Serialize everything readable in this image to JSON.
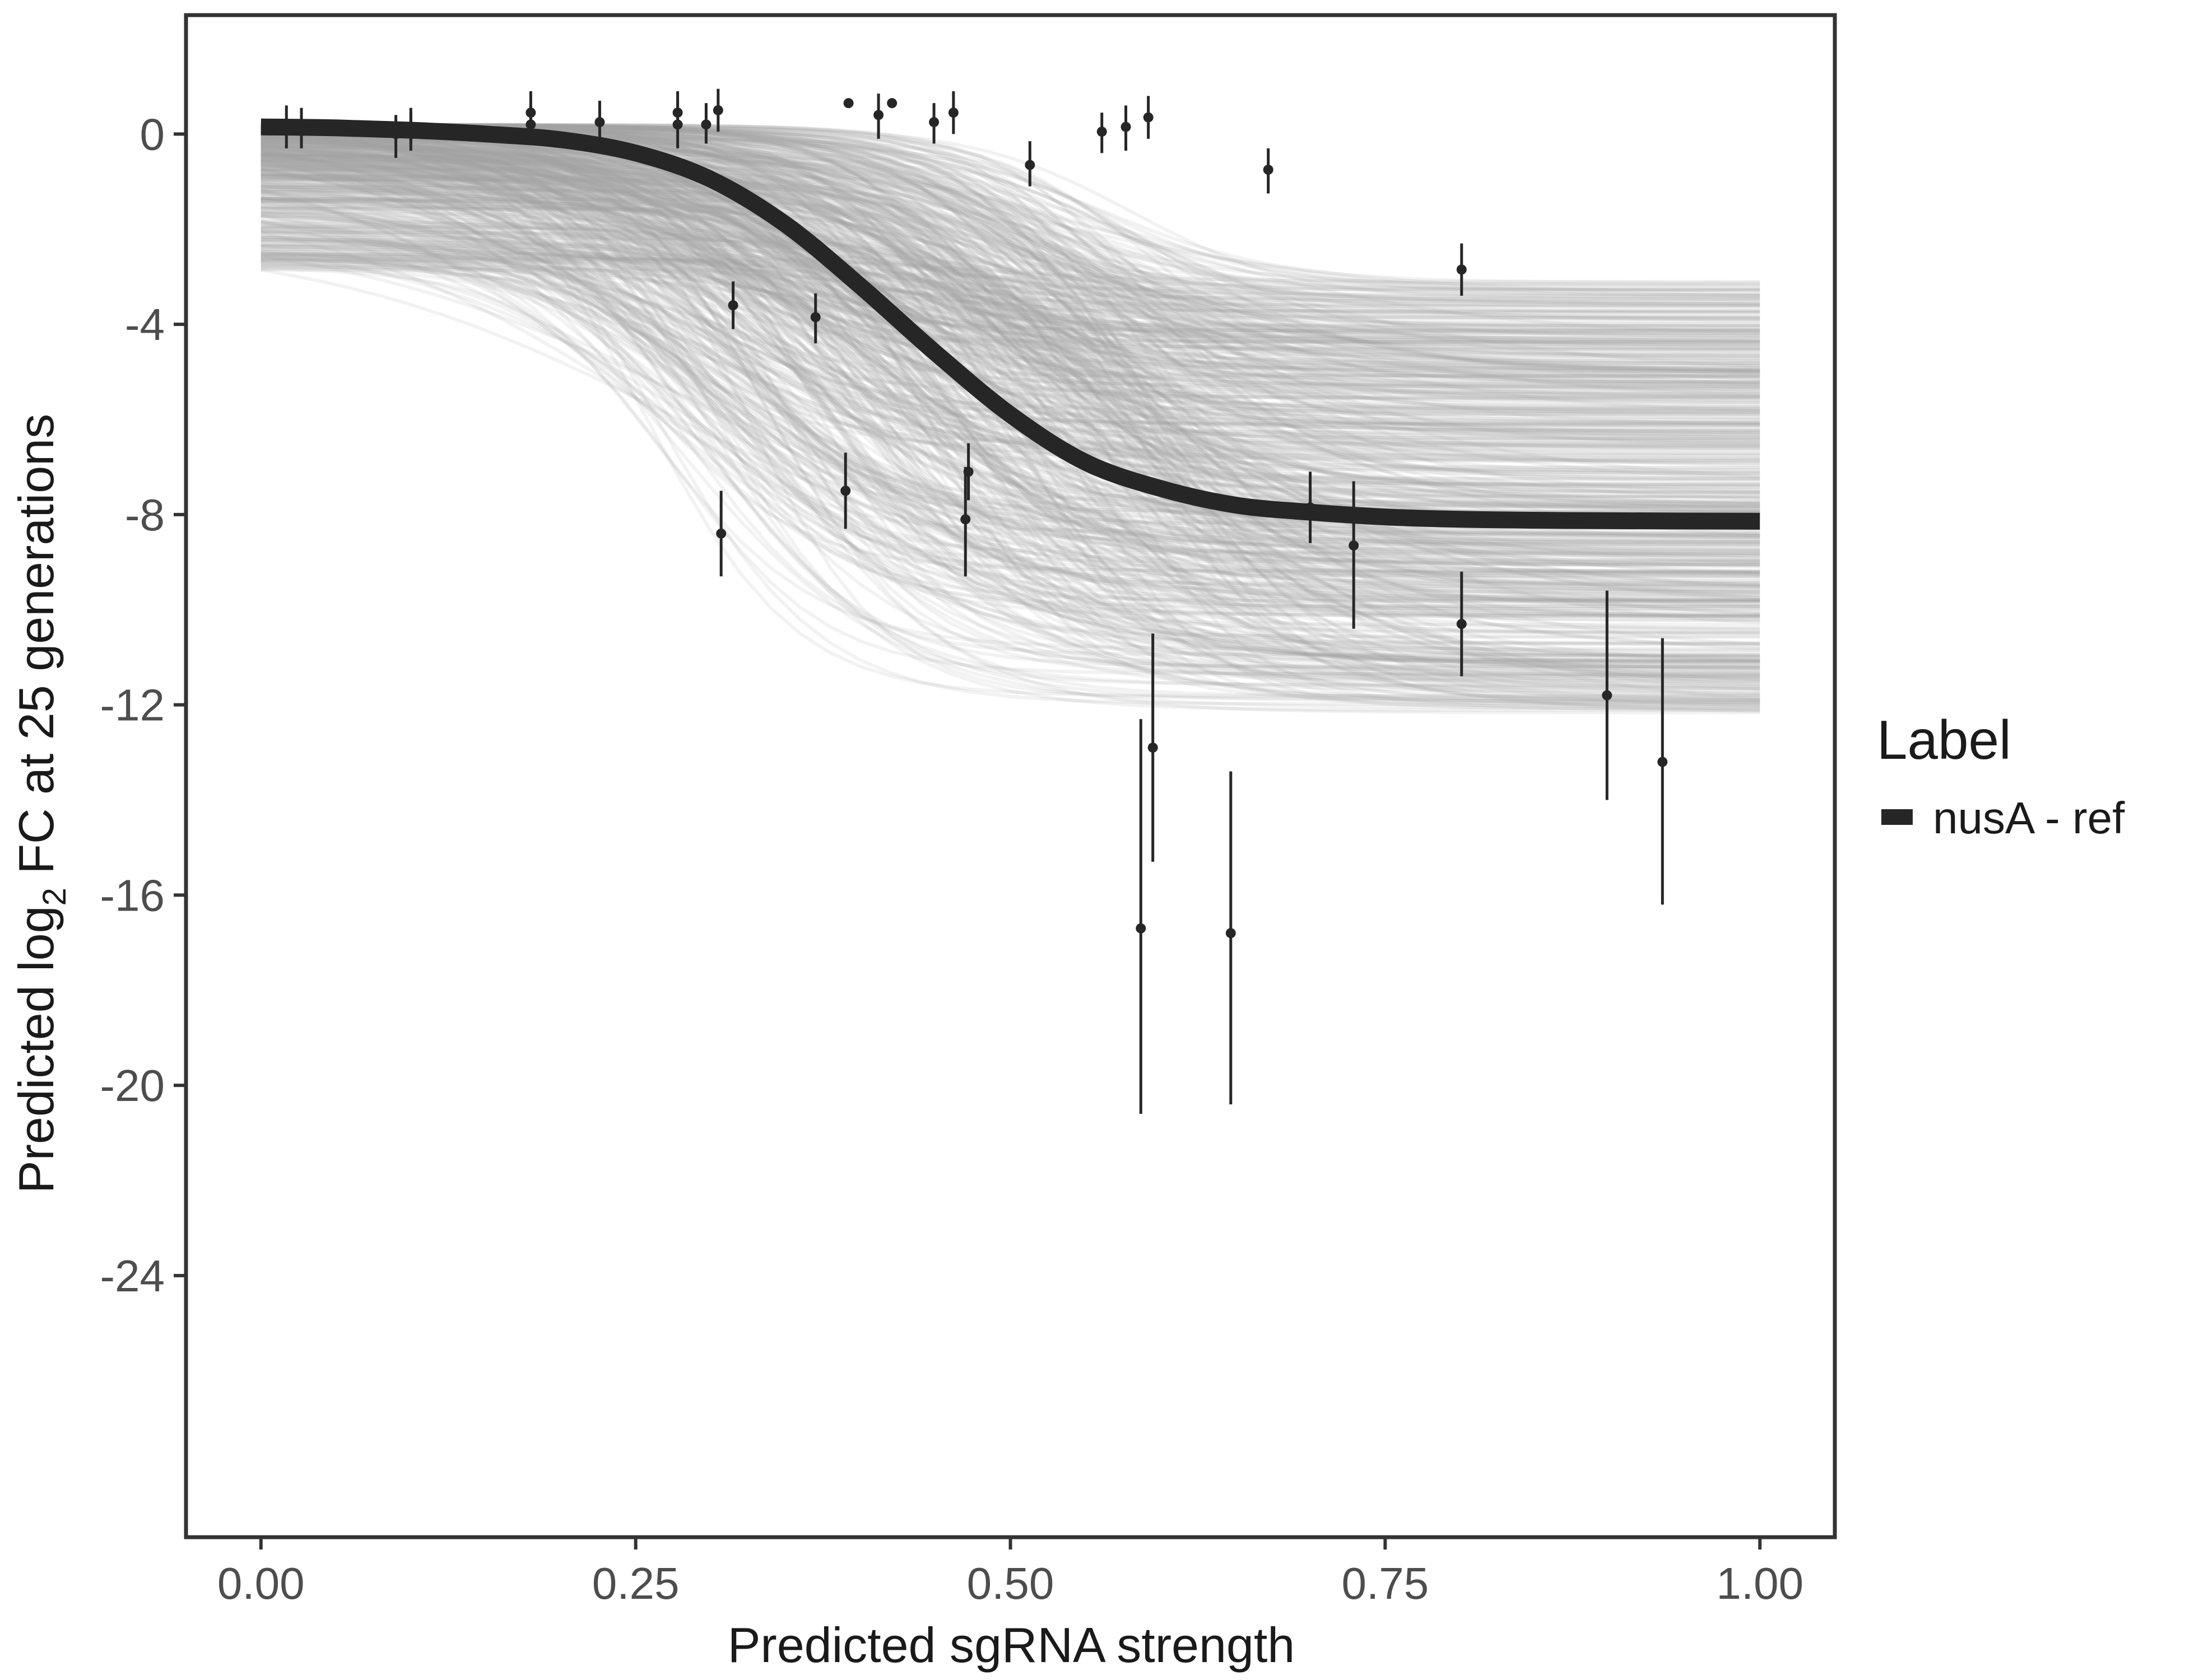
{
  "chart_data": {
    "type": "line",
    "xlabel": "Predicted sgRNA strength",
    "ylabel_prefix": "Predicted  log",
    "ylabel_subscript": "2",
    "ylabel_suffix": " FC at 25 generations",
    "xlim": [
      -0.05,
      1.05
    ],
    "ylim": [
      -29.5,
      2.5
    ],
    "x_ticks": [
      0,
      0.25,
      0.5,
      0.75,
      1
    ],
    "x_tick_labels": [
      "0.00",
      "0.25",
      "0.50",
      "0.75",
      "1.00"
    ],
    "y_ticks": [
      0,
      -4,
      -8,
      -12,
      -16,
      -20,
      -24
    ],
    "y_tick_labels": [
      "0",
      "-4",
      "-8",
      "-12",
      "-16",
      "-20",
      "-24"
    ],
    "grid": false,
    "legend": {
      "title": "Label",
      "position": "right",
      "entries": [
        {
          "label": "nusA - ref",
          "color": "#262626"
        }
      ]
    },
    "series": [
      {
        "name": "nusA - ref",
        "kind": "fitted_curve",
        "color": "#262626",
        "points": [
          [
            0.0,
            0.15
          ],
          [
            0.05,
            0.13
          ],
          [
            0.1,
            0.08
          ],
          [
            0.15,
            0.0
          ],
          [
            0.2,
            -0.12
          ],
          [
            0.25,
            -0.4
          ],
          [
            0.3,
            -0.95
          ],
          [
            0.35,
            -1.9
          ],
          [
            0.4,
            -3.2
          ],
          [
            0.45,
            -4.6
          ],
          [
            0.5,
            -5.9
          ],
          [
            0.55,
            -6.9
          ],
          [
            0.6,
            -7.45
          ],
          [
            0.65,
            -7.8
          ],
          [
            0.7,
            -7.95
          ],
          [
            0.75,
            -8.05
          ],
          [
            0.8,
            -8.1
          ],
          [
            0.85,
            -8.12
          ],
          [
            0.9,
            -8.13
          ],
          [
            1.0,
            -8.14
          ]
        ]
      },
      {
        "name": "posterior draws",
        "kind": "draw_band",
        "color": "#a6a6a6",
        "draw_count": 600,
        "start_range": [
          -2.9,
          0.2
        ],
        "end_range": [
          -13.8,
          -3.1
        ],
        "midpoint_range": [
          0.25,
          0.6
        ]
      },
      {
        "name": "observed",
        "kind": "points_with_errorbars",
        "color": "#262626",
        "points": [
          {
            "x": 0.017,
            "y": 0.15,
            "lo": -0.3,
            "hi": 0.6
          },
          {
            "x": 0.027,
            "y": 0.12,
            "lo": -0.3,
            "hi": 0.55
          },
          {
            "x": 0.09,
            "y": 0.0,
            "lo": -0.5,
            "hi": 0.4
          },
          {
            "x": 0.1,
            "y": 0.15,
            "lo": -0.35,
            "hi": 0.55
          },
          {
            "x": 0.1,
            "y": 0.1,
            "lo": -0.2,
            "hi": 0.45
          },
          {
            "x": 0.18,
            "y": 0.45,
            "lo": -0.05,
            "hi": 0.9
          },
          {
            "x": 0.18,
            "y": 0.2,
            "lo": -0.2,
            "hi": 0.6
          },
          {
            "x": 0.226,
            "y": 0.25,
            "lo": -0.2,
            "hi": 0.7
          },
          {
            "x": 0.278,
            "y": 0.45,
            "lo": 0.0,
            "hi": 0.9
          },
          {
            "x": 0.278,
            "y": 0.2,
            "lo": -0.3,
            "hi": 0.7
          },
          {
            "x": 0.297,
            "y": 0.2,
            "lo": -0.2,
            "hi": 0.65
          },
          {
            "x": 0.305,
            "y": 0.5,
            "lo": 0.05,
            "hi": 0.95
          },
          {
            "x": 0.307,
            "y": -8.4,
            "lo": -9.3,
            "hi": -7.5
          },
          {
            "x": 0.315,
            "y": -3.6,
            "lo": -4.1,
            "hi": -3.1
          },
          {
            "x": 0.37,
            "y": -3.85,
            "lo": -4.4,
            "hi": -3.35
          },
          {
            "x": 0.39,
            "y": -7.5,
            "lo": -8.3,
            "hi": -6.7
          },
          {
            "x": 0.392,
            "y": 0.65,
            "lo": 0.6,
            "hi": 0.7
          },
          {
            "x": 0.412,
            "y": 0.4,
            "lo": -0.1,
            "hi": 0.85
          },
          {
            "x": 0.421,
            "y": 0.65,
            "lo": 0.6,
            "hi": 0.7
          },
          {
            "x": 0.449,
            "y": 0.25,
            "lo": -0.2,
            "hi": 0.65
          },
          {
            "x": 0.462,
            "y": 0.45,
            "lo": 0.0,
            "hi": 0.9
          },
          {
            "x": 0.47,
            "y": -8.1,
            "lo": -9.3,
            "hi": -7.0
          },
          {
            "x": 0.472,
            "y": -7.1,
            "lo": -7.7,
            "hi": -6.5
          },
          {
            "x": 0.513,
            "y": -0.65,
            "lo": -1.1,
            "hi": -0.15
          },
          {
            "x": 0.561,
            "y": 0.05,
            "lo": -0.4,
            "hi": 0.45
          },
          {
            "x": 0.577,
            "y": 0.15,
            "lo": -0.35,
            "hi": 0.6
          },
          {
            "x": 0.587,
            "y": -16.7,
            "lo": -20.6,
            "hi": -12.3
          },
          {
            "x": 0.592,
            "y": 0.35,
            "lo": -0.1,
            "hi": 0.8
          },
          {
            "x": 0.595,
            "y": -12.9,
            "lo": -15.3,
            "hi": -10.5
          },
          {
            "x": 0.647,
            "y": -16.8,
            "lo": -20.4,
            "hi": -13.4
          },
          {
            "x": 0.672,
            "y": -0.75,
            "lo": -1.25,
            "hi": -0.3
          },
          {
            "x": 0.7,
            "y": -7.85,
            "lo": -8.6,
            "hi": -7.1
          },
          {
            "x": 0.729,
            "y": -8.65,
            "lo": -10.4,
            "hi": -7.3
          },
          {
            "x": 0.801,
            "y": -2.85,
            "lo": -3.4,
            "hi": -2.3
          },
          {
            "x": 0.801,
            "y": -10.3,
            "lo": -11.4,
            "hi": -9.2
          },
          {
            "x": 0.898,
            "y": -11.8,
            "lo": -14.0,
            "hi": -9.6
          },
          {
            "x": 0.935,
            "y": -13.2,
            "lo": -16.2,
            "hi": -10.6
          }
        ]
      }
    ]
  }
}
